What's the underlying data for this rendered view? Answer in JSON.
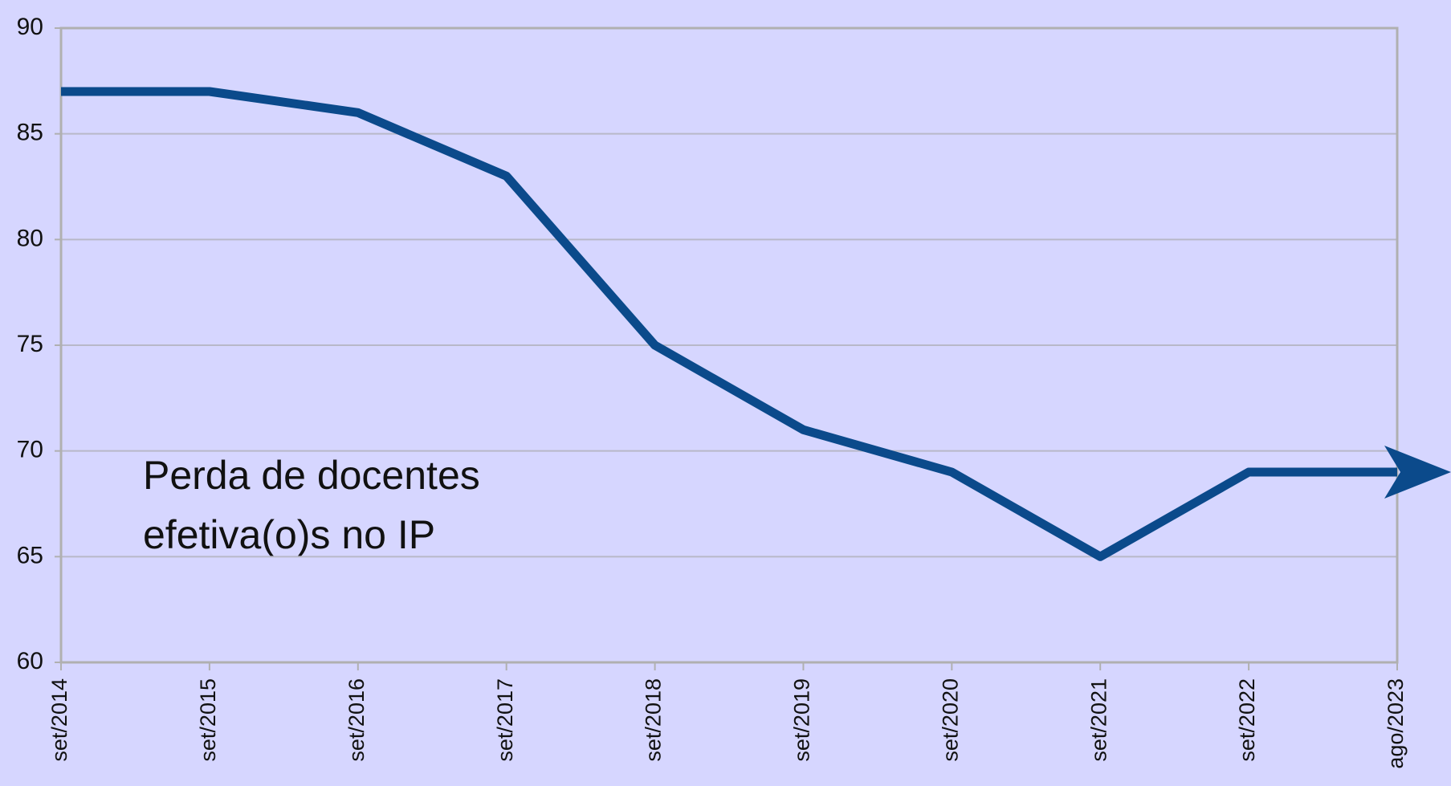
{
  "chart_data": {
    "type": "line",
    "categories": [
      "set/2014",
      "set/2015",
      "set/2016",
      "set/2017",
      "set/2018",
      "set/2019",
      "set/2020",
      "set/2021",
      "set/2022",
      "ago/2023"
    ],
    "values": [
      87,
      87,
      86,
      83,
      75,
      71,
      69,
      65,
      69,
      69
    ],
    "color": "#0b4a8b",
    "ylim": [
      60,
      90
    ],
    "yticks": [
      60,
      65,
      70,
      75,
      80,
      85,
      90
    ],
    "grid": true,
    "annotation": [
      "Perda de docentes",
      "efetiva(o)s no IP"
    ]
  }
}
